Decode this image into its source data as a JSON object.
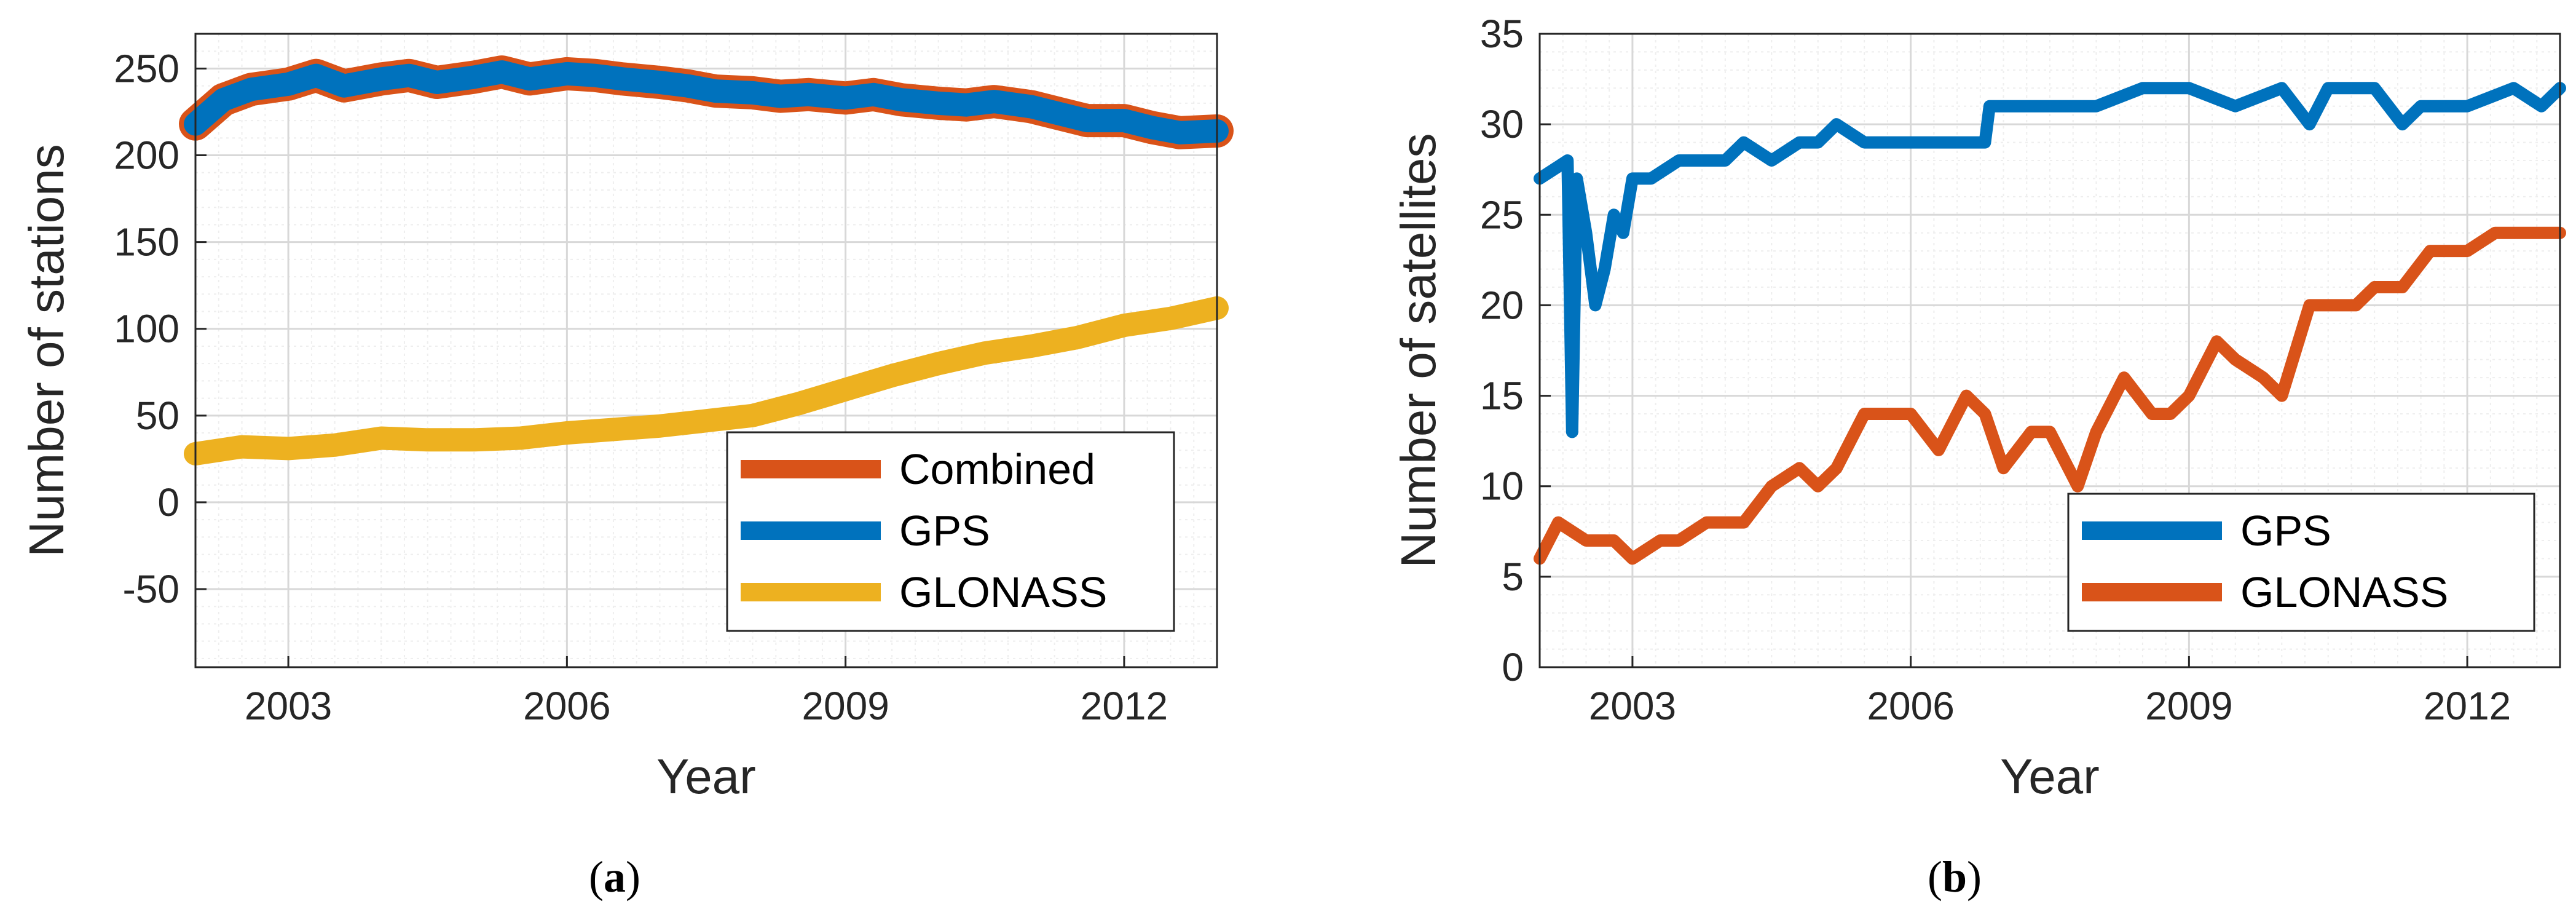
{
  "colors": {
    "combined": "#D95319",
    "gps": "#0072BD",
    "glonass": "#EDB120",
    "grid_major": "#d8d8d8",
    "grid_minor": "#eeeeee"
  },
  "chart_data": [
    {
      "type": "line",
      "id": "a",
      "caption_letter": "a",
      "xlabel": "Year",
      "ylabel": "Number of stations",
      "xlim": [
        2002.0,
        2013.0
      ],
      "ylim": [
        -95,
        270
      ],
      "xticks": [
        2003,
        2006,
        2009,
        2012
      ],
      "yticks": [
        -50,
        0,
        50,
        100,
        150,
        200,
        250
      ],
      "grid": true,
      "legend_position": "lower-right",
      "legend": [
        "Combined",
        "GPS",
        "GLONASS"
      ],
      "series": [
        {
          "name": "Combined",
          "color": "#D95319",
          "x": [
            2002.0,
            2002.3,
            2002.6,
            2003.0,
            2003.3,
            2003.6,
            2004.0,
            2004.3,
            2004.6,
            2005.0,
            2005.3,
            2005.6,
            2006.0,
            2006.3,
            2006.6,
            2007.0,
            2007.3,
            2007.6,
            2008.0,
            2008.3,
            2008.6,
            2009.0,
            2009.3,
            2009.6,
            2010.0,
            2010.3,
            2010.6,
            2011.0,
            2011.3,
            2011.6,
            2012.0,
            2012.3,
            2012.6,
            2013.0
          ],
          "y": [
            218,
            232,
            238,
            241,
            246,
            240,
            244,
            246,
            242,
            245,
            248,
            244,
            247,
            246,
            244,
            242,
            240,
            237,
            236,
            234,
            235,
            233,
            235,
            232,
            230,
            229,
            231,
            228,
            224,
            220,
            220,
            216,
            213,
            214
          ]
        },
        {
          "name": "GPS",
          "color": "#0072BD",
          "x": [
            2002.0,
            2002.3,
            2002.6,
            2003.0,
            2003.3,
            2003.6,
            2004.0,
            2004.3,
            2004.6,
            2005.0,
            2005.3,
            2005.6,
            2006.0,
            2006.3,
            2006.6,
            2007.0,
            2007.3,
            2007.6,
            2008.0,
            2008.3,
            2008.6,
            2009.0,
            2009.3,
            2009.6,
            2010.0,
            2010.3,
            2010.6,
            2011.0,
            2011.3,
            2011.6,
            2012.0,
            2012.3,
            2012.6,
            2013.0
          ],
          "y": [
            218,
            232,
            238,
            241,
            246,
            240,
            244,
            246,
            242,
            245,
            248,
            244,
            247,
            246,
            244,
            242,
            240,
            237,
            236,
            234,
            235,
            233,
            235,
            232,
            230,
            229,
            231,
            228,
            224,
            220,
            220,
            216,
            213,
            214
          ]
        },
        {
          "name": "GLONASS",
          "color": "#EDB120",
          "x": [
            2002.0,
            2002.5,
            2003.0,
            2003.5,
            2004.0,
            2004.5,
            2005.0,
            2005.5,
            2006.0,
            2006.5,
            2007.0,
            2007.5,
            2008.0,
            2008.5,
            2009.0,
            2009.5,
            2010.0,
            2010.5,
            2011.0,
            2011.5,
            2012.0,
            2012.5,
            2013.0
          ],
          "y": [
            28,
            32,
            31,
            33,
            37,
            36,
            36,
            37,
            40,
            42,
            44,
            47,
            50,
            57,
            65,
            73,
            80,
            86,
            90,
            95,
            102,
            106,
            112
          ]
        }
      ]
    },
    {
      "type": "line",
      "id": "b",
      "caption_letter": "b",
      "xlabel": "Year",
      "ylabel": "Number of satellites",
      "xlim": [
        2002.0,
        2013.0
      ],
      "ylim": [
        0,
        35
      ],
      "xticks": [
        2003,
        2006,
        2009,
        2012
      ],
      "yticks": [
        0,
        5,
        10,
        15,
        20,
        25,
        30,
        35
      ],
      "grid": true,
      "legend_position": "lower-right",
      "legend": [
        "GPS",
        "GLONASS"
      ],
      "series": [
        {
          "name": "GPS",
          "color": "#0072BD",
          "x": [
            2002.0,
            2002.3,
            2002.35,
            2002.4,
            2002.5,
            2002.6,
            2002.7,
            2002.8,
            2002.9,
            2003.0,
            2003.2,
            2003.5,
            2003.8,
            2004.0,
            2004.2,
            2004.5,
            2004.8,
            2005.0,
            2005.2,
            2005.5,
            2005.8,
            2006.0,
            2006.5,
            2006.8,
            2006.85,
            2007.0,
            2007.5,
            2008.0,
            2008.5,
            2009.0,
            2009.5,
            2010.0,
            2010.3,
            2010.5,
            2011.0,
            2011.3,
            2011.5,
            2012.0,
            2012.5,
            2012.8,
            2013.0
          ],
          "y": [
            27,
            28,
            13,
            27,
            24,
            20,
            22,
            25,
            24,
            27,
            27,
            28,
            28,
            28,
            29,
            28,
            29,
            29,
            30,
            29,
            29,
            29,
            29,
            29,
            31,
            31,
            31,
            31,
            32,
            32,
            31,
            32,
            30,
            32,
            32,
            30,
            31,
            31,
            32,
            31,
            32
          ]
        },
        {
          "name": "GLONASS",
          "color": "#D95319",
          "x": [
            2002.0,
            2002.2,
            2002.5,
            2002.8,
            2003.0,
            2003.3,
            2003.5,
            2003.8,
            2004.0,
            2004.2,
            2004.5,
            2004.8,
            2005.0,
            2005.2,
            2005.5,
            2005.8,
            2006.0,
            2006.3,
            2006.6,
            2006.8,
            2007.0,
            2007.3,
            2007.5,
            2007.8,
            2008.0,
            2008.3,
            2008.6,
            2008.8,
            2009.0,
            2009.3,
            2009.5,
            2009.8,
            2010.0,
            2010.3,
            2010.6,
            2010.8,
            2011.0,
            2011.3,
            2011.6,
            2011.9,
            2012.0,
            2012.3,
            2012.6,
            2012.8,
            2013.0
          ],
          "y": [
            6,
            8,
            7,
            7,
            6,
            7,
            7,
            8,
            8,
            8,
            10,
            11,
            10,
            11,
            14,
            14,
            14,
            12,
            15,
            14,
            11,
            13,
            13,
            10,
            13,
            16,
            14,
            14,
            15,
            18,
            17,
            16,
            15,
            20,
            20,
            20,
            21,
            21,
            23,
            23,
            23,
            24,
            24,
            24,
            24
          ]
        }
      ]
    }
  ]
}
